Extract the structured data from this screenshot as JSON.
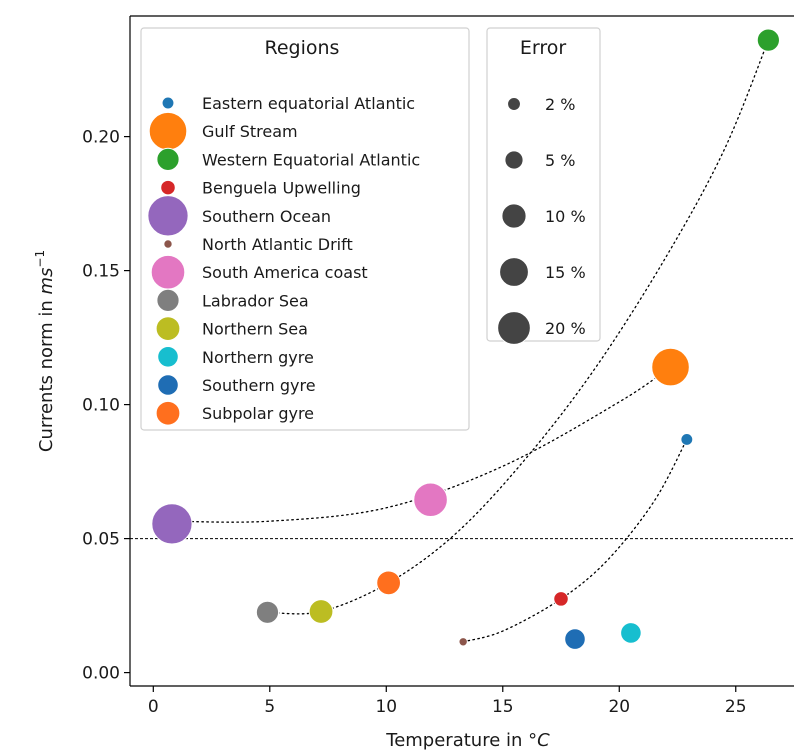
{
  "chart_data": {
    "type": "scatter",
    "xlabel_main": "Temperature in ",
    "xlabel_unit": "°C",
    "ylabel_main": "Currents norm in ",
    "ylabel_unit": "ms",
    "ylabel_exp": "−1",
    "xlim": [
      -1,
      27.5
    ],
    "ylim": [
      -0.005,
      0.245
    ],
    "x_ticks": [
      0,
      5,
      10,
      15,
      20,
      25
    ],
    "x_tick_labels": [
      "0",
      "5",
      "10",
      "15",
      "20",
      "25"
    ],
    "y_ticks": [
      0.0,
      0.05,
      0.1,
      0.15,
      0.2
    ],
    "y_tick_labels": [
      "0.00",
      "0.05",
      "0.10",
      "0.15",
      "0.20"
    ],
    "reference_line_y": 0.05,
    "grid": false,
    "legend_regions": {
      "title": "Regions",
      "placement": "top-left",
      "entries": [
        {
          "label": "Eastern equatorial Atlantic",
          "color": "#1f77b4",
          "error": 2
        },
        {
          "label": "Gulf Stream",
          "color": "#ff7f0e",
          "error": 20
        },
        {
          "label": "Western Equatorial Atlantic",
          "color": "#2ca02c",
          "error": 7
        },
        {
          "label": "Benguela Upwelling",
          "color": "#d62728",
          "error": 3
        },
        {
          "label": "Southern Ocean",
          "color": "#9467bd",
          "error": 23
        },
        {
          "label": "North Atlantic Drift",
          "color": "#8c564b",
          "error": 1
        },
        {
          "label": "South America coast",
          "color": "#e377c2",
          "error": 16
        },
        {
          "label": "Labrador Sea",
          "color": "#7f7f7f",
          "error": 7
        },
        {
          "label": "Northern Sea",
          "color": "#bcbd22",
          "error": 8
        },
        {
          "label": "Northern gyre",
          "color": "#17becf",
          "error": 6
        },
        {
          "label": "Southern gyre",
          "color": "#1f6db4",
          "error": 6
        },
        {
          "label": "Subpolar gyre",
          "color": "#ff6f1e",
          "error": 8
        }
      ]
    },
    "legend_error": {
      "title": "Error",
      "placement": "top-center",
      "entries": [
        {
          "label": "2 %",
          "size": 2
        },
        {
          "label": "5 %",
          "size": 5
        },
        {
          "label": "10 %",
          "size": 10
        },
        {
          "label": "15 %",
          "size": 15
        },
        {
          "label": "20 %",
          "size": 20
        }
      ]
    },
    "points": [
      {
        "region": "Eastern equatorial Atlantic",
        "x": 22.9,
        "y": 0.087,
        "color": "#1f77b4",
        "error": 2
      },
      {
        "region": "Gulf Stream",
        "x": 22.2,
        "y": 0.114,
        "color": "#ff7f0e",
        "error": 20
      },
      {
        "region": "Western Equatorial Atlantic",
        "x": 26.4,
        "y": 0.236,
        "color": "#2ca02c",
        "error": 7
      },
      {
        "region": "Benguela Upwelling",
        "x": 17.5,
        "y": 0.0275,
        "color": "#d62728",
        "error": 3
      },
      {
        "region": "Southern Ocean",
        "x": 0.8,
        "y": 0.0555,
        "color": "#9467bd",
        "error": 23
      },
      {
        "region": "North Atlantic Drift",
        "x": 13.3,
        "y": 0.0115,
        "color": "#8c564b",
        "error": 1
      },
      {
        "region": "South America coast",
        "x": 11.9,
        "y": 0.0645,
        "color": "#e377c2",
        "error": 16
      },
      {
        "region": "Labrador Sea",
        "x": 4.9,
        "y": 0.0225,
        "color": "#7f7f7f",
        "error": 7
      },
      {
        "region": "Northern Sea",
        "x": 7.2,
        "y": 0.0228,
        "color": "#bcbd22",
        "error": 8
      },
      {
        "region": "Northern gyre",
        "x": 20.5,
        "y": 0.0148,
        "color": "#17becf",
        "error": 6
      },
      {
        "region": "Southern gyre",
        "x": 18.1,
        "y": 0.0125,
        "color": "#1f6db4",
        "error": 6
      },
      {
        "region": "Subpolar gyre",
        "x": 10.1,
        "y": 0.0335,
        "color": "#ff6f1e",
        "error": 8
      }
    ],
    "fit_curves": [
      {
        "points": [
          [
            0.8,
            0.0565
          ],
          [
            5,
            0.0565
          ],
          [
            10,
            0.0615
          ],
          [
            15,
            0.077
          ],
          [
            20,
            0.101
          ],
          [
            22.2,
            0.114
          ]
        ]
      },
      {
        "points": [
          [
            4.9,
            0.0225
          ],
          [
            7.2,
            0.0228
          ],
          [
            10.1,
            0.0335
          ],
          [
            13,
            0.052
          ],
          [
            16,
            0.08
          ],
          [
            19,
            0.114
          ],
          [
            22,
            0.155
          ],
          [
            24.5,
            0.195
          ],
          [
            26.4,
            0.236
          ]
        ]
      },
      {
        "points": [
          [
            13.3,
            0.0115
          ],
          [
            15,
            0.0155
          ],
          [
            17.5,
            0.0275
          ],
          [
            19.5,
            0.042
          ],
          [
            21.5,
            0.064
          ],
          [
            22.9,
            0.087
          ]
        ]
      }
    ]
  }
}
